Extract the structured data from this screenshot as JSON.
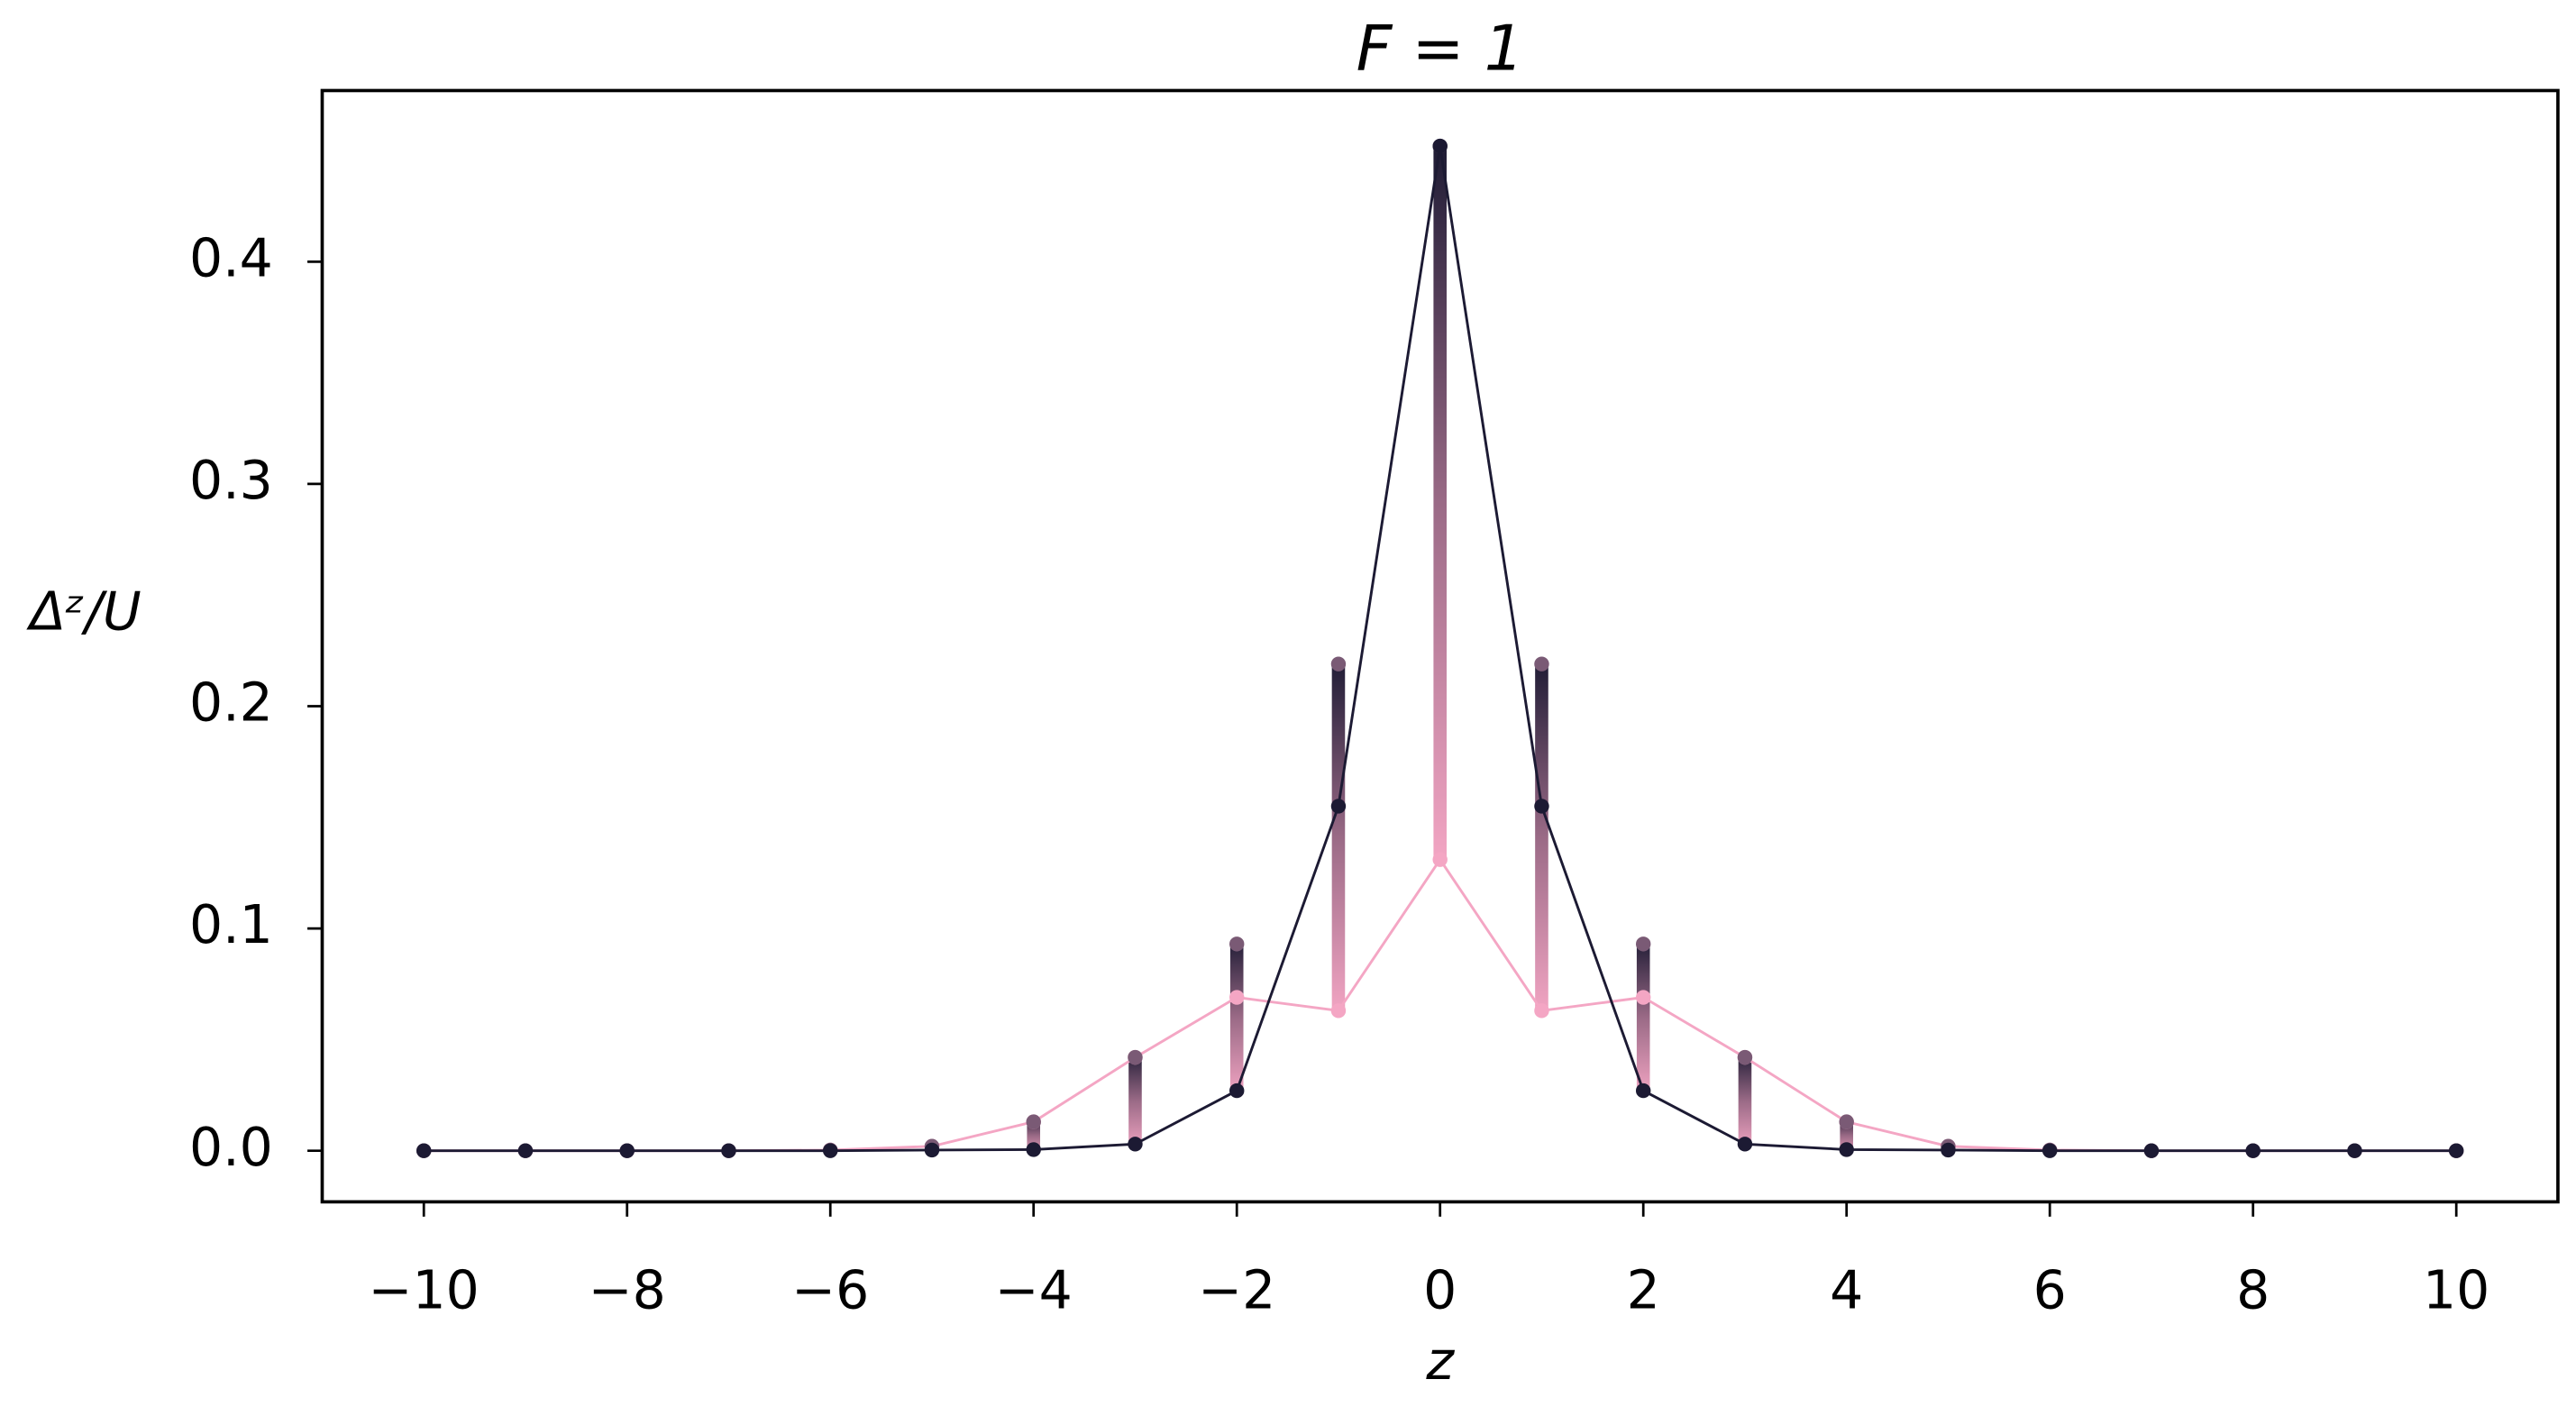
{
  "chart_data": {
    "type": "scatter",
    "title": "F = 1",
    "x_label": "z",
    "y_label": "Δᶻ/U",
    "x": [
      -10,
      -9,
      -8,
      -7,
      -6,
      -5,
      -4,
      -3,
      -2,
      -1,
      0,
      1,
      2,
      3,
      4,
      5,
      6,
      7,
      8,
      9,
      10
    ],
    "series": [
      {
        "color": "#f4a6c4",
        "line": true,
        "values": [
          0,
          0,
          0,
          0,
          0.0003,
          0.002,
          0.013,
          0.042,
          0.069,
          0.063,
          0.131,
          0.063,
          0.069,
          0.042,
          0.013,
          0.002,
          0.0003,
          0,
          0,
          0,
          0
        ]
      },
      {
        "color": "#7a5a75",
        "line": false,
        "values": [
          0,
          0,
          0,
          0,
          0.0003,
          0.002,
          0.013,
          0.042,
          0.093,
          0.219,
          0.452,
          0.219,
          0.093,
          0.042,
          0.013,
          0.002,
          0.0003,
          0,
          0,
          0,
          0
        ]
      },
      {
        "color": "#1c1a33",
        "line": true,
        "values": [
          0,
          0,
          0,
          0,
          0,
          0.0003,
          0.0005,
          0.003,
          0.027,
          0.155,
          0.452,
          0.155,
          0.027,
          0.003,
          0.0005,
          0.0003,
          0,
          0,
          0,
          0,
          0
        ]
      }
    ],
    "xlim": [
      -11,
      11
    ],
    "ylim": [
      -0.023,
      0.477
    ],
    "xticks": [
      {
        "value": -10,
        "label": "−10"
      },
      {
        "value": -8,
        "label": "−8"
      },
      {
        "value": -6,
        "label": "−6"
      },
      {
        "value": -4,
        "label": "−4"
      },
      {
        "value": -2,
        "label": "−2"
      },
      0,
      2,
      4,
      6,
      8,
      10
    ],
    "yticks": [
      {
        "value": 0,
        "label": "0.0"
      },
      0.1,
      0.2,
      0.3,
      0.4
    ]
  }
}
